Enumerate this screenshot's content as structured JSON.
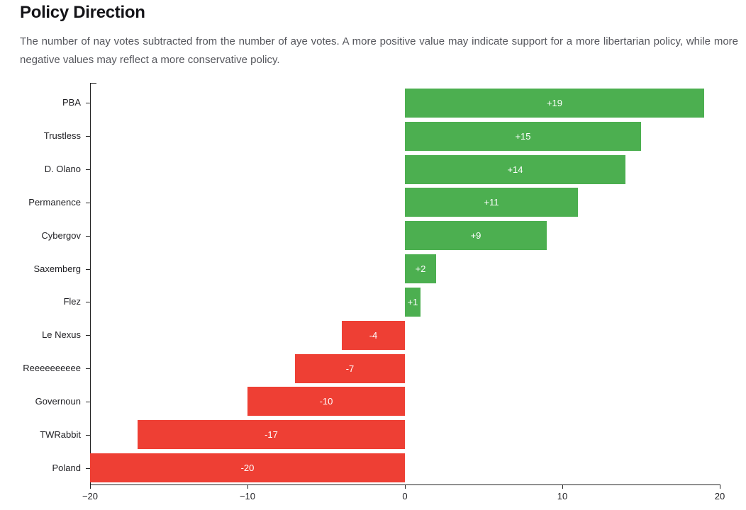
{
  "header": {
    "title": "Policy Direction",
    "subtitle": "The number of nay votes subtracted from the number of aye votes. A more positive value may indicate support for a more libertarian policy, while more negative values may reflect a more conservative policy."
  },
  "chart_data": {
    "type": "bar",
    "orientation": "horizontal",
    "title": "Policy Direction",
    "categories": [
      "PBA",
      "Trustless",
      "D. Olano",
      "Permanence",
      "Cybergov",
      "Saxemberg",
      "Flez",
      "Le Nexus",
      "Reeeeeeeeee",
      "Governoun",
      "TWRabbit",
      "Poland"
    ],
    "values": [
      19,
      15,
      14,
      11,
      9,
      2,
      1,
      -4,
      -7,
      -10,
      -17,
      -20
    ],
    "bar_labels": [
      "+19",
      "+15",
      "+14",
      "+11",
      "+9",
      "+2",
      "+1",
      "-4",
      "-7",
      "-10",
      "-17",
      "-20"
    ],
    "xlabel": "",
    "ylabel": "",
    "xlim": [
      -20,
      20
    ],
    "x_ticks": [
      -20,
      -10,
      0,
      10,
      20
    ],
    "x_tick_labels": [
      "−20",
      "−10",
      "0",
      "10",
      "20"
    ],
    "grid": false,
    "legend_position": "none",
    "colors": {
      "positive": "#4caf50",
      "negative": "#ee3f34",
      "bar_label": "#ffffff",
      "axis": "#222222",
      "category_text": "#1f1f23",
      "tick_text": "#222226"
    }
  }
}
